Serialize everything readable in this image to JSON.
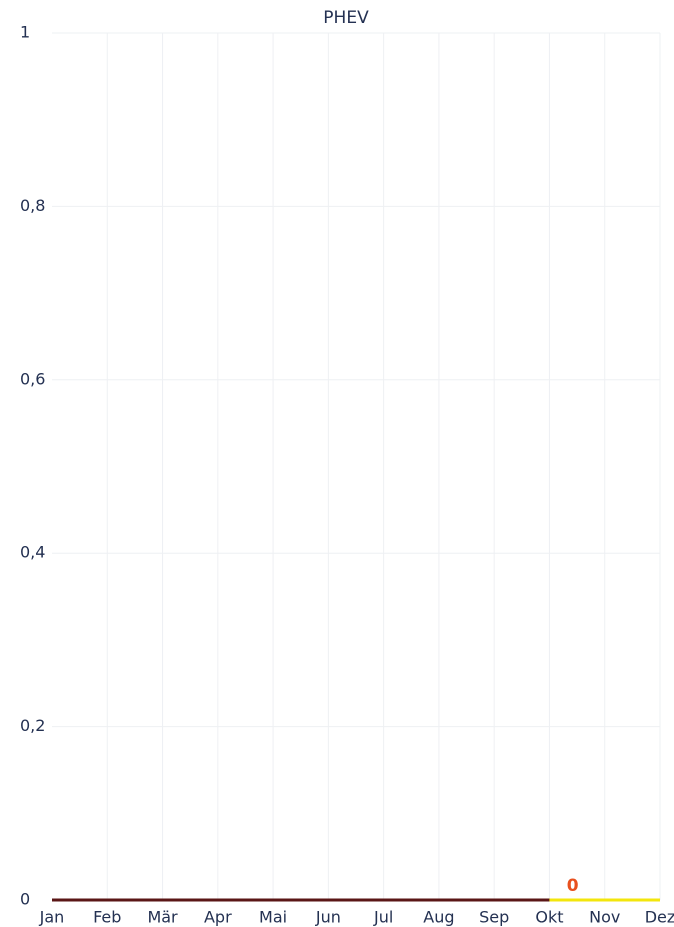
{
  "chart_data": {
    "type": "line",
    "title": "PHEV",
    "categories": [
      "Jan",
      "Feb",
      "Mär",
      "Apr",
      "Mai",
      "Jun",
      "Jul",
      "Aug",
      "Sep",
      "Okt",
      "Nov",
      "Dez"
    ],
    "series": [
      {
        "color": "#5a1616",
        "values": [
          0,
          0,
          0,
          0,
          0,
          0,
          0,
          0,
          0,
          0,
          null,
          null
        ]
      },
      {
        "color": "#f3e60c",
        "values": [
          null,
          null,
          null,
          null,
          null,
          null,
          null,
          null,
          null,
          0,
          0,
          0
        ]
      }
    ],
    "annotations": [
      {
        "text": "0",
        "color": "#e8501e"
      }
    ],
    "ylim": [
      0,
      1
    ],
    "yticks": [
      0,
      {
        "value": 0.2,
        "label": "0,2"
      },
      {
        "value": 0.4,
        "label": "0,4"
      },
      {
        "value": 0.6,
        "label": "0,6"
      },
      {
        "value": 0.8,
        "label": "0,8"
      },
      1
    ],
    "grid": true
  }
}
